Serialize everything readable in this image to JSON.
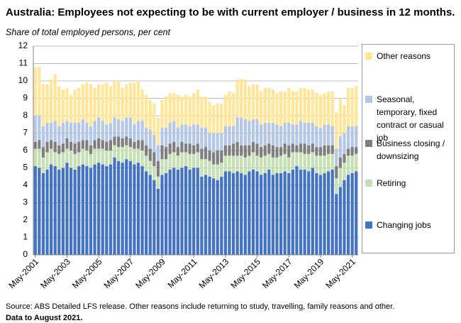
{
  "chart_data": {
    "type": "stacked_bar",
    "title": "Australia: Employees not expecting to be with current employer / business in 12 months.",
    "subtitle": "Share of total employed persons, per cent",
    "source": "Source: ABS Detailed LFS release. Other reasons include returning to study, travelling, family reasons and other.",
    "note": "Data to August 2021.",
    "ylim": [
      0,
      12
    ],
    "yticks": [
      0,
      1,
      2,
      3,
      4,
      5,
      6,
      7,
      8,
      9,
      10,
      11,
      12
    ],
    "grid": true,
    "categories": [
      "May-2001",
      null,
      null,
      null,
      null,
      null,
      null,
      null,
      "May-2003",
      null,
      null,
      null,
      null,
      null,
      null,
      null,
      "May-2005",
      null,
      null,
      null,
      null,
      null,
      null,
      null,
      "May-2007",
      null,
      null,
      null,
      null,
      null,
      null,
      null,
      "May-2009",
      null,
      null,
      null,
      null,
      null,
      null,
      null,
      "May-2011",
      null,
      null,
      null,
      null,
      null,
      null,
      null,
      "May-2013",
      null,
      null,
      null,
      null,
      null,
      null,
      null,
      "May-2015",
      null,
      null,
      null,
      null,
      null,
      null,
      null,
      "May-2017",
      null,
      null,
      null,
      null,
      null,
      null,
      null,
      "May-2019",
      null,
      null,
      null,
      null,
      null,
      null,
      null,
      "May-2021",
      null
    ],
    "series": [
      {
        "name": "Changing jobs",
        "color": "#4472c4",
        "values": [
          5.1,
          5.0,
          4.7,
          4.9,
          5.2,
          5.1,
          4.9,
          5.0,
          5.3,
          5.0,
          4.9,
          5.1,
          5.2,
          5.1,
          5.0,
          5.2,
          5.3,
          5.2,
          5.1,
          5.2,
          5.6,
          5.4,
          5.3,
          5.5,
          5.4,
          5.2,
          5.3,
          5.1,
          4.8,
          4.6,
          4.3,
          3.8,
          4.6,
          4.7,
          4.9,
          5.0,
          4.9,
          5.0,
          5.1,
          4.9,
          5.0,
          5.0,
          4.5,
          4.6,
          4.5,
          4.4,
          4.3,
          4.5,
          4.8,
          4.8,
          4.7,
          4.8,
          4.7,
          4.6,
          4.8,
          4.9,
          4.8,
          4.6,
          4.7,
          4.9,
          4.6,
          4.7,
          4.7,
          4.8,
          4.7,
          4.9,
          5.1,
          4.9,
          4.9,
          4.8,
          5.0,
          4.7,
          4.6,
          4.7,
          4.8,
          4.9,
          3.5,
          3.9,
          4.3,
          4.6,
          4.7,
          4.8
        ]
      },
      {
        "name": "Retiring",
        "color": "#c5e0b4",
        "values": [
          1.0,
          1.1,
          0.9,
          1.0,
          0.9,
          0.8,
          0.9,
          0.9,
          0.8,
          1.0,
          0.9,
          0.8,
          0.9,
          0.9,
          0.8,
          0.9,
          0.8,
          0.9,
          0.9,
          0.8,
          0.7,
          0.8,
          0.9,
          0.8,
          0.8,
          0.9,
          0.8,
          0.9,
          0.9,
          0.8,
          0.8,
          0.7,
          0.9,
          0.8,
          0.9,
          0.9,
          0.8,
          0.9,
          0.8,
          0.9,
          0.8,
          0.9,
          1.0,
          0.9,
          0.9,
          0.8,
          0.9,
          0.8,
          0.9,
          0.9,
          1.0,
          0.9,
          1.0,
          1.0,
          0.9,
          1.0,
          0.9,
          1.0,
          1.0,
          0.9,
          1.0,
          0.9,
          1.0,
          1.0,
          0.9,
          1.0,
          0.8,
          1.0,
          0.9,
          1.0,
          0.9,
          1.0,
          1.1,
          1.0,
          1.0,
          0.9,
          0.9,
          1.1,
          1.0,
          1.1,
          1.0,
          1.0
        ]
      },
      {
        "name": "Business closing / downsizing",
        "color": "#7f7f7f",
        "values": [
          0.4,
          0.5,
          0.6,
          0.6,
          0.5,
          0.6,
          0.5,
          0.5,
          0.6,
          0.5,
          0.6,
          0.6,
          0.5,
          0.6,
          0.5,
          0.5,
          0.6,
          0.5,
          0.5,
          0.6,
          0.5,
          0.6,
          0.5,
          0.5,
          0.5,
          0.4,
          0.5,
          0.6,
          0.6,
          0.7,
          0.8,
          0.9,
          0.8,
          0.7,
          0.6,
          0.6,
          0.5,
          0.6,
          0.5,
          0.6,
          0.5,
          0.5,
          0.6,
          0.7,
          0.6,
          0.7,
          0.8,
          0.7,
          0.6,
          0.6,
          0.7,
          0.8,
          0.6,
          0.7,
          0.6,
          0.6,
          0.7,
          0.6,
          0.6,
          0.6,
          0.7,
          0.6,
          0.5,
          0.6,
          0.7,
          0.5,
          0.4,
          0.5,
          0.6,
          0.5,
          0.5,
          0.5,
          0.5,
          0.6,
          0.5,
          0.5,
          0.7,
          0.6,
          0.5,
          0.4,
          0.5,
          0.4
        ]
      },
      {
        "name": "Seasonal, temporary, fixed contract or casual job",
        "color": "#b4c7e7",
        "values": [
          1.5,
          1.4,
          1.2,
          1.1,
          1.0,
          1.2,
          1.1,
          1.2,
          1.0,
          1.1,
          1.2,
          1.1,
          1.2,
          1.0,
          1.1,
          1.1,
          1.2,
          1.1,
          1.0,
          1.0,
          1.1,
          1.0,
          1.0,
          1.1,
          1.2,
          1.0,
          1.1,
          1.1,
          1.0,
          1.1,
          1.0,
          0.9,
          1.0,
          1.1,
          1.2,
          1.2,
          1.1,
          1.0,
          1.1,
          1.0,
          1.2,
          1.1,
          1.2,
          1.1,
          1.0,
          1.1,
          1.0,
          1.0,
          1.1,
          1.1,
          1.0,
          1.4,
          1.6,
          1.5,
          1.4,
          1.3,
          1.4,
          1.3,
          1.3,
          1.2,
          1.3,
          1.3,
          1.2,
          1.2,
          1.3,
          1.1,
          1.2,
          1.3,
          1.2,
          1.3,
          1.2,
          1.2,
          1.1,
          1.2,
          1.2,
          1.1,
          1.0,
          1.2,
          1.2,
          1.3,
          1.2,
          1.2
        ]
      },
      {
        "name": "Other reasons",
        "color": "#ffe699",
        "values": [
          2.8,
          2.8,
          2.4,
          2.2,
          2.5,
          2.7,
          2.3,
          1.9,
          1.9,
          1.6,
          1.9,
          2.0,
          2.0,
          2.3,
          2.4,
          1.9,
          1.9,
          2.1,
          2.4,
          2.1,
          2.1,
          2.2,
          1.9,
          1.9,
          2.0,
          2.4,
          2.3,
          1.8,
          1.9,
          1.7,
          1.8,
          1.6,
          1.6,
          1.8,
          1.7,
          1.6,
          1.9,
          1.6,
          1.7,
          1.7,
          1.8,
          2.0,
          1.8,
          1.8,
          1.8,
          1.6,
          1.7,
          1.7,
          1.8,
          2.0,
          1.9,
          2.2,
          2.2,
          2.3,
          2.0,
          2.0,
          2.0,
          1.9,
          2.0,
          2.0,
          1.9,
          1.8,
          2.0,
          1.8,
          2.0,
          1.9,
          1.9,
          1.9,
          2.0,
          1.9,
          1.9,
          1.9,
          1.9,
          1.8,
          1.9,
          2.0,
          2.1,
          2.2,
          1.6,
          2.2,
          2.2,
          2.3
        ]
      }
    ]
  }
}
